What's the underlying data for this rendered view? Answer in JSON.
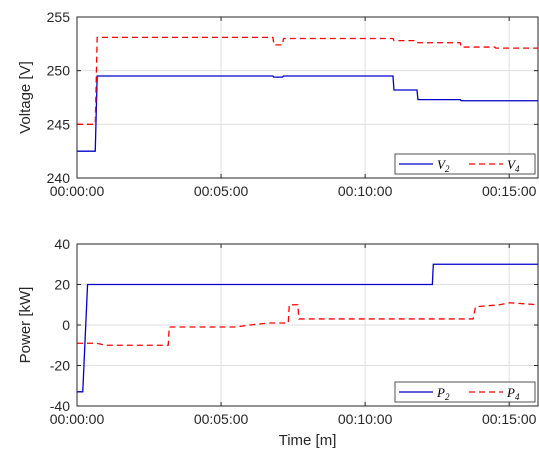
{
  "chart_data": [
    {
      "type": "line",
      "xlabel": "",
      "ylabel": "Voltage [V]",
      "xlim": [
        "00:00:00",
        "00:16:00"
      ],
      "ylim": [
        240,
        255
      ],
      "x_ticks": [
        "00:00:00",
        "00:05:00",
        "00:10:00",
        "00:15:00"
      ],
      "y_ticks": [
        "240",
        "245",
        "250",
        "255"
      ],
      "grid": true,
      "legend": "bottom-right",
      "series": [
        {
          "name": "V2",
          "legend_main": "V",
          "legend_sub": "2",
          "color": "#0000cc",
          "style": "solid",
          "points": [
            [
              "00:00:00",
              242.5
            ],
            [
              "00:00:38",
              242.5
            ],
            [
              "00:00:42",
              249.5
            ],
            [
              "00:06:48",
              249.5
            ],
            [
              "00:06:50",
              249.4
            ],
            [
              "00:07:08",
              249.4
            ],
            [
              "00:07:10",
              249.5
            ],
            [
              "00:10:58",
              249.5
            ],
            [
              "00:11:00",
              248.2
            ],
            [
              "00:11:48",
              248.2
            ],
            [
              "00:11:50",
              247.3
            ],
            [
              "00:13:18",
              247.3
            ],
            [
              "00:13:20",
              247.2
            ],
            [
              "00:16:00",
              247.2
            ]
          ]
        },
        {
          "name": "V4",
          "legend_main": "V",
          "legend_sub": "4",
          "color": "#ff0000",
          "style": "dashed",
          "points": [
            [
              "00:00:00",
              245.0
            ],
            [
              "00:00:38",
              245.0
            ],
            [
              "00:00:42",
              253.1
            ],
            [
              "00:06:48",
              253.1
            ],
            [
              "00:06:50",
              252.4
            ],
            [
              "00:07:08",
              252.4
            ],
            [
              "00:07:10",
              253.0
            ],
            [
              "00:10:58",
              253.0
            ],
            [
              "00:11:00",
              252.8
            ],
            [
              "00:11:48",
              252.8
            ],
            [
              "00:11:50",
              252.6
            ],
            [
              "00:13:18",
              252.6
            ],
            [
              "00:13:20",
              252.2
            ],
            [
              "00:14:30",
              252.2
            ],
            [
              "00:14:32",
              252.1
            ],
            [
              "00:16:00",
              252.1
            ]
          ]
        }
      ]
    },
    {
      "type": "line",
      "xlabel": "Time [m]",
      "ylabel": "Power [kW]",
      "xlim": [
        "00:00:00",
        "00:16:00"
      ],
      "ylim": [
        -40,
        40
      ],
      "x_ticks": [
        "00:00:00",
        "00:05:00",
        "00:10:00",
        "00:15:00"
      ],
      "y_ticks": [
        "-40",
        "-20",
        "0",
        "20",
        "40"
      ],
      "grid": true,
      "legend": "bottom-right",
      "series": [
        {
          "name": "P2",
          "legend_main": "P",
          "legend_sub": "2",
          "color": "#0000cc",
          "style": "solid",
          "points": [
            [
              "00:00:00",
              -33
            ],
            [
              "00:00:12",
              -33
            ],
            [
              "00:00:22",
              20
            ],
            [
              "00:12:20",
              20
            ],
            [
              "00:12:22",
              30
            ],
            [
              "00:16:00",
              30
            ]
          ]
        },
        {
          "name": "P4",
          "legend_main": "P",
          "legend_sub": "4",
          "color": "#ff0000",
          "style": "dashed",
          "points": [
            [
              "00:00:00",
              -9
            ],
            [
              "00:00:40",
              -9
            ],
            [
              "00:01:00",
              -10
            ],
            [
              "00:03:10",
              -10
            ],
            [
              "00:03:12",
              -1
            ],
            [
              "00:05:30",
              -1
            ],
            [
              "00:06:00",
              0
            ],
            [
              "00:06:40",
              1
            ],
            [
              "00:07:20",
              1
            ],
            [
              "00:07:22",
              10
            ],
            [
              "00:07:40",
              10
            ],
            [
              "00:07:42",
              3
            ],
            [
              "00:13:45",
              3
            ],
            [
              "00:13:50",
              9
            ],
            [
              "00:14:40",
              10
            ],
            [
              "00:15:00",
              11
            ],
            [
              "00:16:00",
              10
            ]
          ]
        }
      ]
    }
  ]
}
